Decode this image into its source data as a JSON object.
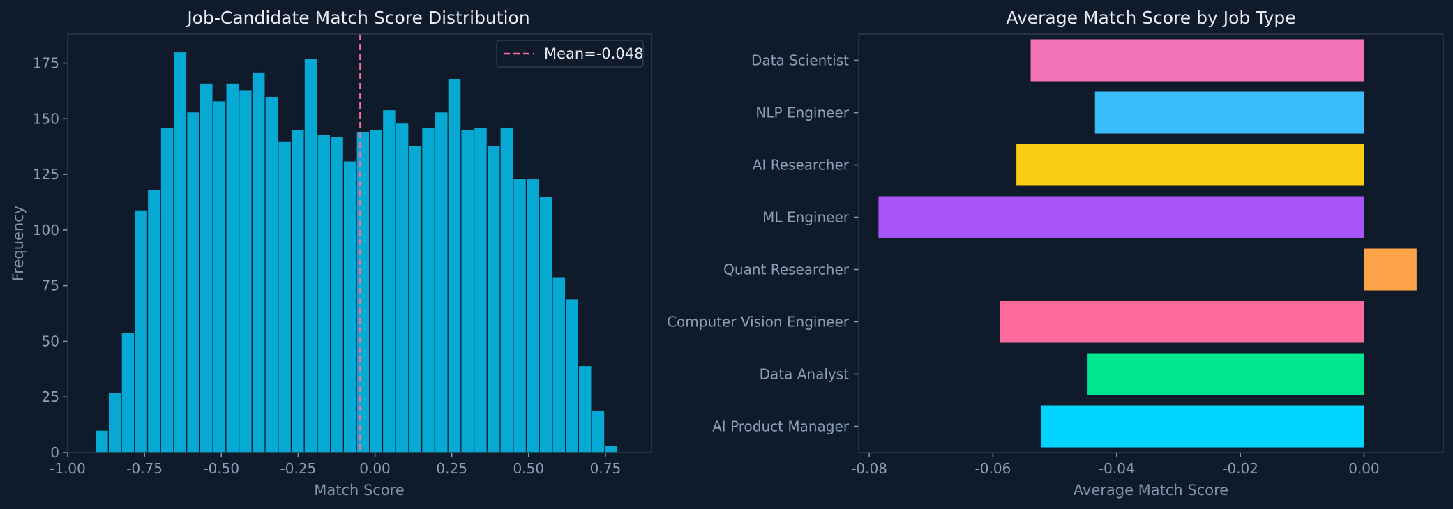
{
  "chart_data": [
    {
      "type": "bar",
      "title": "Job-Candidate Match Score Distribution",
      "xlabel": "Match Score",
      "ylabel": "Frequency",
      "xlim": [
        -1.0,
        0.9
      ],
      "ylim": [
        0,
        188
      ],
      "xticks": [
        -1.0,
        -0.75,
        -0.5,
        -0.25,
        0.0,
        0.25,
        0.5,
        0.75
      ],
      "xtick_labels": [
        "-1.00",
        "-0.75",
        "-0.50",
        "-0.25",
        "0.00",
        "0.25",
        "0.50",
        "0.75"
      ],
      "yticks": [
        0,
        25,
        50,
        75,
        100,
        125,
        150,
        175
      ],
      "yticks_labels": [
        "0",
        "25",
        "50",
        "75",
        "100",
        "125",
        "150",
        "175"
      ],
      "bin_start": -0.91,
      "bin_width": 0.0425,
      "values": [
        10,
        27,
        54,
        109,
        118,
        146,
        180,
        153,
        166,
        158,
        166,
        163,
        171,
        160,
        140,
        145,
        177,
        143,
        142,
        131,
        144,
        145,
        154,
        148,
        138,
        146,
        153,
        168,
        145,
        146,
        138,
        146,
        123,
        123,
        115,
        79,
        69,
        39,
        19,
        3
      ],
      "mean": -0.048,
      "legend_label": "Mean=-0.048",
      "bar_color": "#06a9d3",
      "mean_color": "#ff6b9d"
    },
    {
      "type": "barh",
      "title": "Average Match Score by Job Type",
      "xlabel": "Average Match Score",
      "xlim": [
        -0.0817,
        0.0128
      ],
      "xticks": [
        -0.08,
        -0.06,
        -0.04,
        -0.02,
        0.0
      ],
      "xtick_labels": [
        "-0.08",
        "-0.06",
        "-0.04",
        "-0.02",
        "0.00"
      ],
      "categories": [
        "Data Scientist",
        "NLP Engineer",
        "AI Researcher",
        "ML Engineer",
        "Quant Researcher",
        "Computer Vision Engineer",
        "Data Analyst",
        "AI Product Manager"
      ],
      "values": [
        -0.0539,
        -0.0435,
        -0.0562,
        -0.0785,
        0.0085,
        -0.0589,
        -0.0447,
        -0.0522
      ],
      "colors": [
        "#f472b6",
        "#38bdf8",
        "#facc15",
        "#a855f7",
        "#ffa348",
        "#ff6b9d",
        "#00e58f",
        "#00d4ff"
      ]
    }
  ]
}
